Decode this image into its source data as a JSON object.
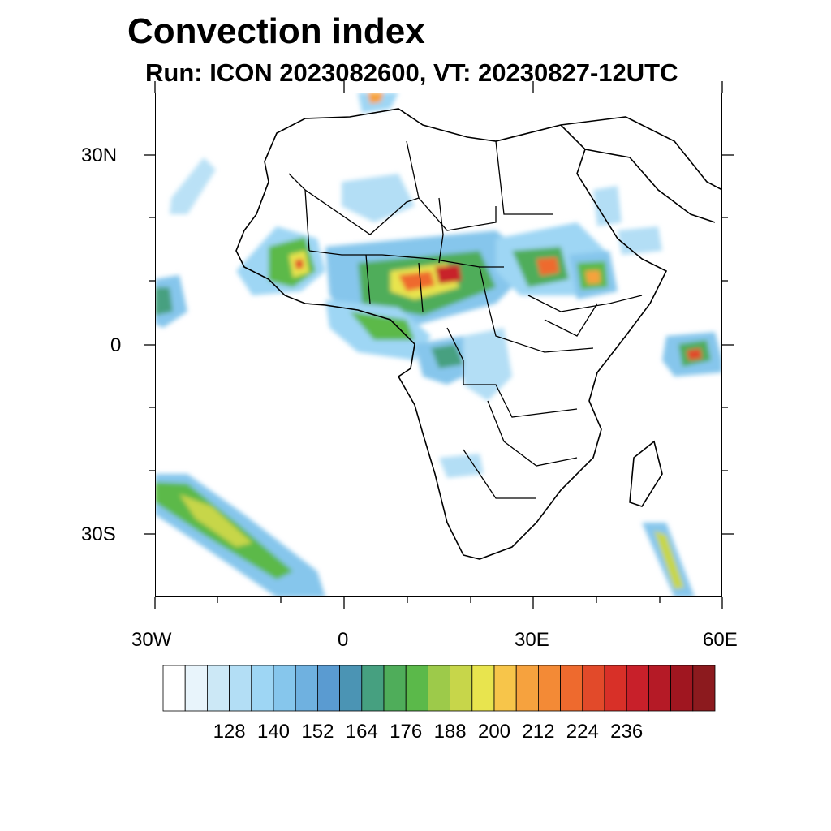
{
  "header": {
    "title": "Convection index",
    "subtitle": "Run: ICON 2023082600,  VT: 20230827-12UTC"
  },
  "map": {
    "region": "Africa",
    "lon_range": [
      -30,
      60
    ],
    "lat_range": [
      -40,
      40
    ],
    "lat_labels": [
      {
        "text": "30N",
        "lat": 30
      },
      {
        "text": "0",
        "lat": 0
      },
      {
        "text": "30S",
        "lat": -30
      }
    ],
    "lon_labels": [
      {
        "text": "30W",
        "lon": -30
      },
      {
        "text": "0",
        "lon": 0
      },
      {
        "text": "30E",
        "lon": 30
      },
      {
        "text": "60E",
        "lon": 60
      }
    ]
  },
  "colorbar": {
    "colors": [
      "#ffffff",
      "#e8f4fb",
      "#cce8f6",
      "#b3def5",
      "#9ed6f4",
      "#86c6ec",
      "#6fb1e0",
      "#5a9bd1",
      "#4b94b4",
      "#46a080",
      "#4fad5a",
      "#5bb94a",
      "#9dca4a",
      "#c7d64a",
      "#e8e44e",
      "#f7c54a",
      "#f6a23e",
      "#f38a36",
      "#ee6a2e",
      "#e24a2a",
      "#d83028",
      "#c8202a",
      "#b51a26",
      "#a01620",
      "#8c1a1e"
    ],
    "labels": [
      "128",
      "140",
      "152",
      "164",
      "176",
      "188",
      "200",
      "212",
      "224",
      "236"
    ]
  }
}
